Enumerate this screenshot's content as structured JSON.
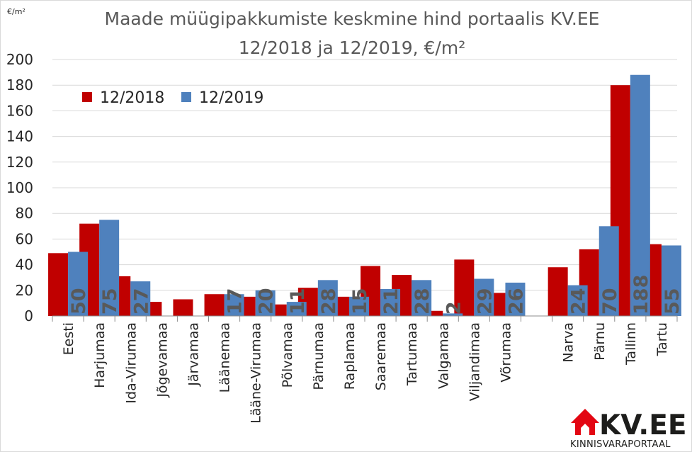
{
  "chart_data": {
    "type": "bar",
    "title": "Maade müügipakkumiste keskmine hind portaalis KV.EE",
    "subtitle": "12/2018 ja 12/2019, €/m²",
    "unit_label": "€/m²",
    "ylim": [
      0,
      200
    ],
    "yticks": [
      "0",
      "20",
      "40",
      "60",
      "80",
      "100",
      "120",
      "140",
      "160",
      "180",
      "200"
    ],
    "grid": true,
    "legend_position": "top-left",
    "categories": [
      "Eesti",
      "Harjumaa",
      "Ida-Virumaa",
      "Jõgevamaa",
      "Järvamaa",
      "Läänemaa",
      "Lääne-Virumaa",
      "Põlvamaa",
      "Pärnumaa",
      "Raplamaa",
      "Saaremaa",
      "Tartumaa",
      "Valgamaa",
      "Viljandimaa",
      "Võrumaa",
      "",
      "Narva",
      "Pärnu",
      "Tallinn",
      "Tartu"
    ],
    "series": [
      {
        "name": "12/2018",
        "color": "#c00000",
        "values": [
          49,
          72,
          31,
          11,
          13,
          17,
          15,
          9,
          22,
          15,
          39,
          32,
          4,
          44,
          18,
          null,
          38,
          52,
          180,
          56
        ],
        "labels": [
          "",
          "",
          "",
          "",
          "",
          "",
          "",
          "",
          "",
          "",
          "",
          "",
          "",
          "",
          "",
          "",
          "",
          "",
          "",
          ""
        ]
      },
      {
        "name": "12/2019",
        "color": "#4f81bd",
        "values": [
          50,
          75,
          27,
          null,
          null,
          17,
          20,
          11,
          28,
          15,
          21,
          28,
          2,
          29,
          26,
          null,
          24,
          70,
          188,
          55
        ],
        "labels": [
          "50",
          "75",
          "27",
          "",
          "",
          "17",
          "20",
          "11",
          "28",
          "15",
          "21",
          "28",
          "2",
          "29",
          "26",
          "",
          "24",
          "70",
          "188",
          "55"
        ]
      }
    ]
  },
  "logo": {
    "text": "KV.EE",
    "subtext": "KINNISVARAPORTAAL",
    "color": "#e30613"
  }
}
